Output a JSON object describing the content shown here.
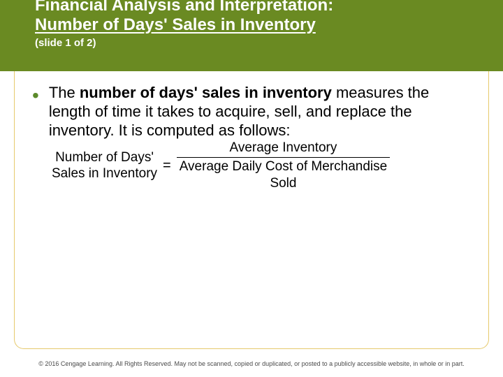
{
  "colors": {
    "header_bg": "#6a8a22",
    "title_color": "#ffffff",
    "bullet_color": "#5b8a2a",
    "frame_border": "#e6c96b",
    "footer_text": "#4a4a4a"
  },
  "header": {
    "title_line1": "Financial Analysis and Interpretation:",
    "title_line2": "Number of Days' Sales in Inventory",
    "subtitle": "(slide 1 of 2)"
  },
  "body": {
    "lead_in": "The ",
    "bold_phrase": "number of days' sales in inventory",
    "rest": " measures the length of time it takes to acquire, sell, and replace the inventory. It is computed as follows:"
  },
  "formula": {
    "lhs_line1": "Number of Days'",
    "lhs_line2": "Sales in Inventory",
    "eq": "=",
    "numerator": "Average Inventory",
    "denominator_line1": "Average Daily Cost of Merchandise",
    "denominator_line2": "Sold"
  },
  "footer": {
    "text": "© 2016 Cengage Learning. All Rights Reserved. May not be scanned, copied or duplicated, or posted to a publicly accessible website, in whole or in part."
  }
}
